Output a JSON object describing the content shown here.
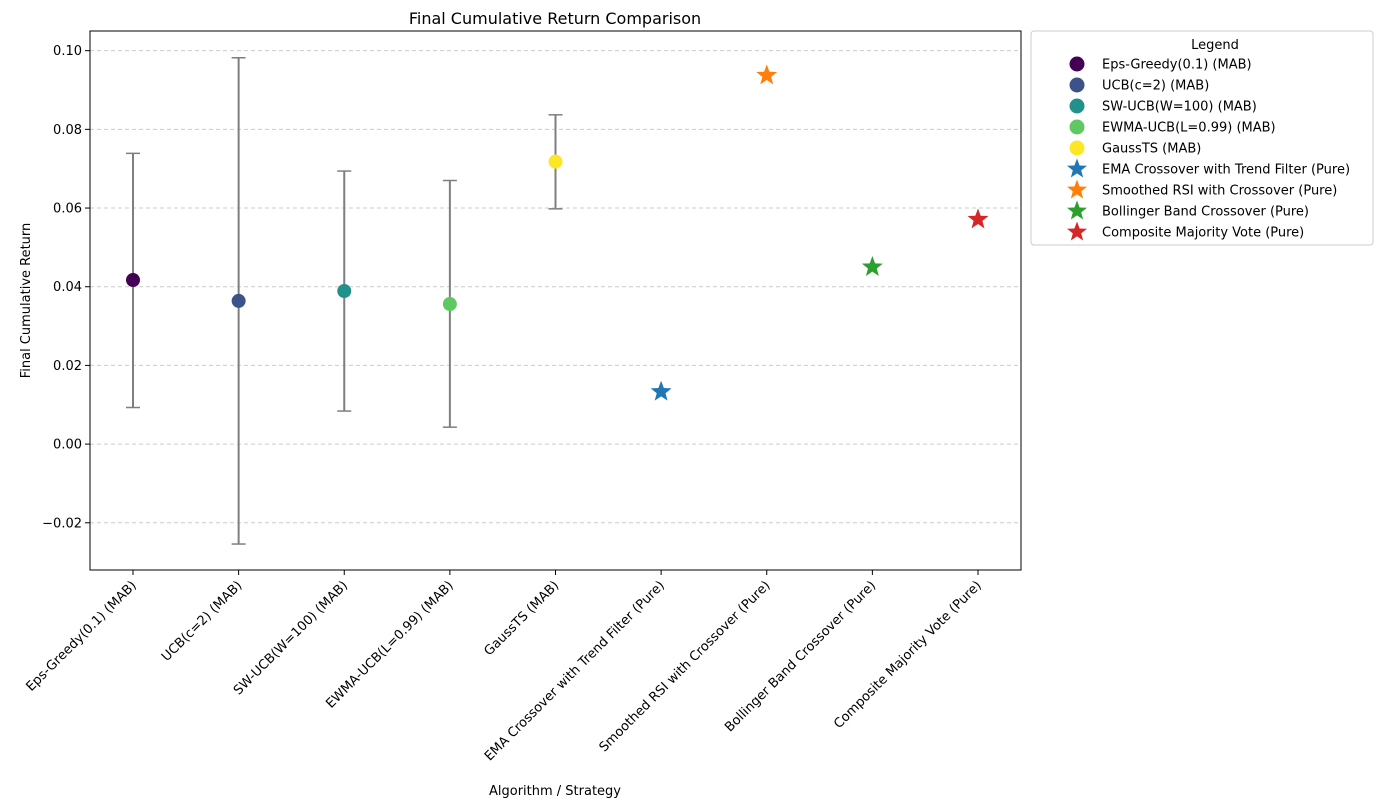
{
  "chart_data": {
    "type": "scatter",
    "title": "Final Cumulative Return Comparison",
    "xlabel": "Algorithm / Strategy",
    "ylabel": "Final Cumulative Return",
    "ylim": [
      -0.032,
      0.105
    ],
    "yticks": [
      -0.02,
      0.0,
      0.02,
      0.04,
      0.06,
      0.08,
      0.1
    ],
    "ytick_labels": [
      "−0.02",
      "0.00",
      "0.02",
      "0.04",
      "0.06",
      "0.08",
      "0.10"
    ],
    "grid": "horizontal dashed",
    "legend_title": "Legend",
    "legend_position": "outside-right-top",
    "categories": [
      "Eps-Greedy(0.1) (MAB)",
      "UCB(c=2) (MAB)",
      "SW-UCB(W=100) (MAB)",
      "EWMA-UCB(L=0.99) (MAB)",
      "GaussTS (MAB)",
      "EMA Crossover with Trend Filter (Pure)",
      "Smoothed RSI with Crossover (Pure)",
      "Bollinger Band Crossover (Pure)",
      "Composite Majority Vote (Pure)"
    ],
    "series": [
      {
        "name": "Eps-Greedy(0.1) (MAB)",
        "value": 0.0417,
        "err_low": 0.0093,
        "err_high": 0.0739,
        "marker": "circle",
        "color": "#440154"
      },
      {
        "name": "UCB(c=2) (MAB)",
        "value": 0.0364,
        "err_low": -0.0254,
        "err_high": 0.0982,
        "marker": "circle",
        "color": "#3b528b"
      },
      {
        "name": "SW-UCB(W=100) (MAB)",
        "value": 0.0389,
        "err_low": 0.0084,
        "err_high": 0.0694,
        "marker": "circle",
        "color": "#21918c"
      },
      {
        "name": "EWMA-UCB(L=0.99) (MAB)",
        "value": 0.0356,
        "err_low": 0.0043,
        "err_high": 0.067,
        "marker": "circle",
        "color": "#5ec962"
      },
      {
        "name": "GaussTS (MAB)",
        "value": 0.0718,
        "err_low": 0.0598,
        "err_high": 0.0837,
        "marker": "circle",
        "color": "#fde725"
      },
      {
        "name": "EMA Crossover with Trend Filter (Pure)",
        "value": 0.0133,
        "marker": "star",
        "color": "#1f77b4"
      },
      {
        "name": "Smoothed RSI with Crossover (Pure)",
        "value": 0.0937,
        "marker": "star",
        "color": "#ff7f0e"
      },
      {
        "name": "Bollinger Band Crossover (Pure)",
        "value": 0.045,
        "marker": "star",
        "color": "#2ca02c"
      },
      {
        "name": "Composite Majority Vote (Pure)",
        "value": 0.0571,
        "marker": "star",
        "color": "#d62728"
      }
    ],
    "errorbar_color": "#7f7f7f",
    "grid_color": "#cccccc"
  }
}
